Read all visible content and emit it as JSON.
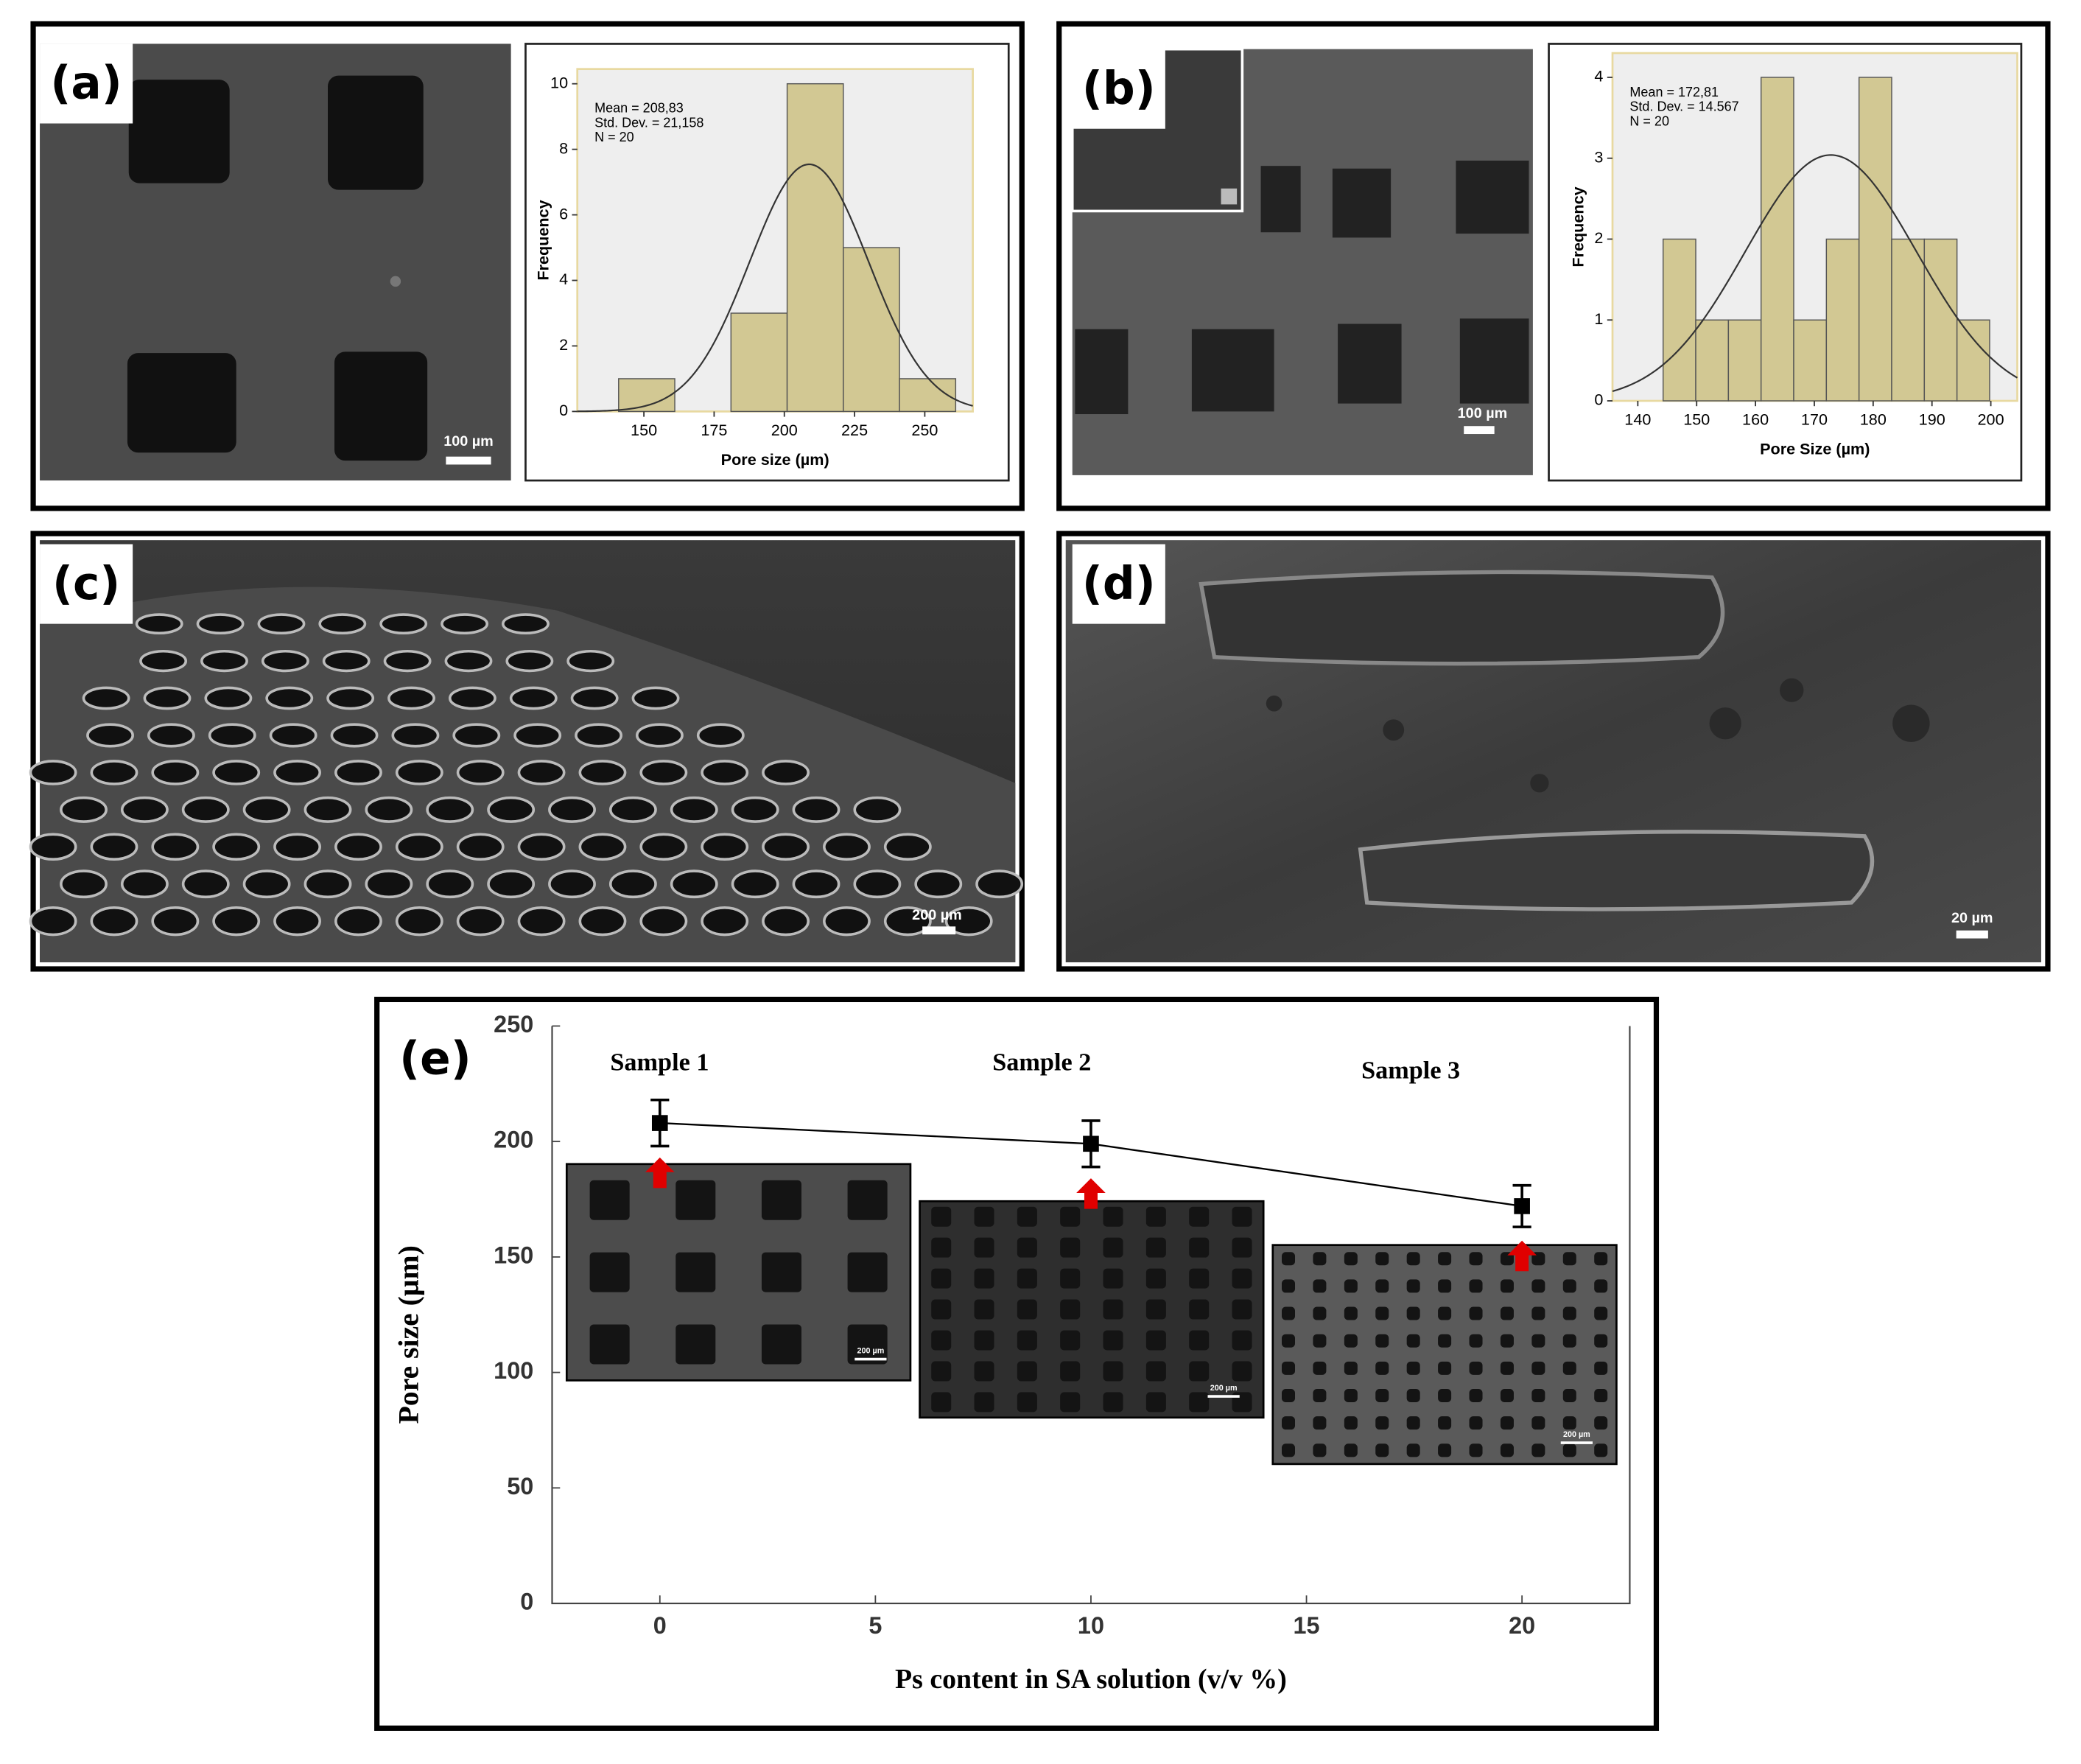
{
  "panels": [
    {
      "label": "(a)",
      "scale_bar": "100 µm"
    },
    {
      "label": "(b)",
      "scale_bar": "100 µm"
    },
    {
      "label": "(c)",
      "scale_bar": "200 µm"
    },
    {
      "label": "(d)",
      "scale_bar": "20 µm"
    },
    {
      "label": "(e)",
      "inset_scale_bar": "200 µm"
    }
  ],
  "chart_data": [
    {
      "type": "histogram",
      "bins": [
        141,
        161,
        181,
        201,
        221,
        241,
        261
      ],
      "values": [
        1,
        0,
        3,
        10,
        5,
        1
      ],
      "color": "#d2c893",
      "xlabel": "Pore size (µm)",
      "ylabel": "Frequency",
      "xlim": [
        126.3,
        267.1
      ],
      "ylim": [
        0,
        10.45
      ],
      "xticks": [
        150,
        175,
        200,
        225,
        250
      ],
      "yticks": [
        0,
        2,
        4,
        6,
        8,
        10
      ],
      "annotations": [
        "Mean = 208,83",
        "Std. Dev. = 21,158",
        "N = 20"
      ],
      "fit": {
        "mean": 208.83,
        "std": 21.158,
        "n": 20
      }
    },
    {
      "type": "histogram",
      "bins": [
        144.3,
        149.85,
        155.4,
        160.95,
        166.5,
        172.05,
        177.6,
        183.15,
        188.7,
        194.25,
        199.8
      ],
      "values": [
        2,
        1,
        1,
        4,
        1,
        2,
        4,
        2,
        2,
        1
      ],
      "color": "#d2c893",
      "xlabel": "Pore Size (µm)",
      "ylabel": "Frequency",
      "xlim": [
        135.7,
        204.5
      ],
      "ylim": [
        0,
        4.3
      ],
      "xticks": [
        140,
        150,
        160,
        170,
        180,
        190,
        200
      ],
      "yticks": [
        0,
        1,
        2,
        3,
        4
      ],
      "annotations": [
        "Mean = 172,81",
        "Std. Dev. = 14.567",
        "N = 20"
      ],
      "fit": {
        "mean": 172.81,
        "std": 14.567,
        "n": 20
      }
    },
    {
      "type": "line",
      "x": [
        0,
        10,
        20
      ],
      "values": [
        208,
        199,
        172
      ],
      "errors": [
        10,
        10,
        9
      ],
      "color": "#000000",
      "xlabel": "Ps content in SA solution (v/v %)",
      "ylabel": "Pore size (µm)",
      "xlim": [
        -2.5,
        22.5
      ],
      "ylim": [
        0,
        250
      ],
      "xticks": [
        0,
        5,
        10,
        15,
        20
      ],
      "yticks": [
        0,
        50,
        100,
        150,
        200,
        250
      ],
      "annotations": [
        "Sample 1",
        "Sample 2",
        "Sample 3"
      ]
    }
  ]
}
